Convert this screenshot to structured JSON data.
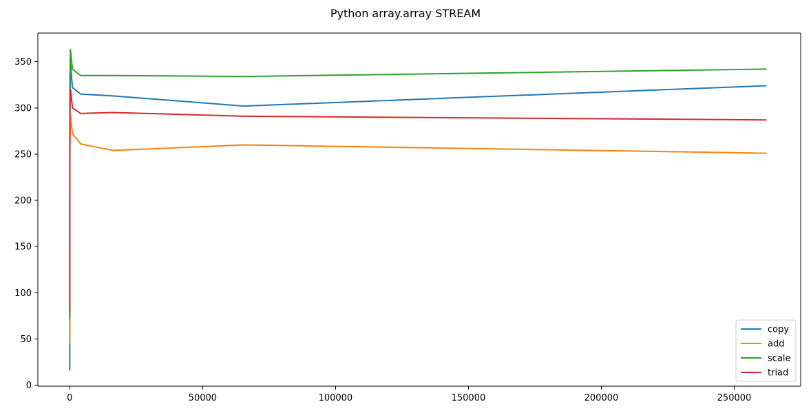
{
  "chart_data": {
    "type": "line",
    "title": "Python array.array STREAM",
    "xlabel": "",
    "ylabel": "",
    "xlim": [
      -12000,
      275000
    ],
    "ylim": [
      -1,
      381
    ],
    "xticks": [
      0,
      50000,
      100000,
      150000,
      200000,
      250000
    ],
    "xtick_labels": [
      "0",
      "50000",
      "100000",
      "150000",
      "200000",
      "250000"
    ],
    "yticks": [
      0,
      50,
      100,
      150,
      200,
      250,
      300,
      350
    ],
    "ytick_labels": [
      "0",
      "50",
      "100",
      "150",
      "200",
      "250",
      "300",
      "350"
    ],
    "grid": false,
    "legend_position": "lower-right",
    "colors": {
      "copy": "#1f77b4",
      "add": "#ff7f0e",
      "scale": "#2ca02c",
      "triad": "#d62728"
    },
    "series": [
      {
        "name": "copy",
        "x": [
          1,
          4,
          16,
          64,
          256,
          1024,
          4096,
          16384,
          65536,
          262144
        ],
        "y": [
          16,
          45,
          150,
          280,
          348,
          322,
          315,
          313,
          302,
          324
        ]
      },
      {
        "name": "add",
        "x": [
          1,
          4,
          16,
          64,
          256,
          1024,
          4096,
          16384,
          65536,
          262144
        ],
        "y": [
          45,
          70,
          180,
          260,
          292,
          272,
          261,
          254,
          260,
          251
        ]
      },
      {
        "name": "scale",
        "x": [
          1,
          4,
          16,
          64,
          256,
          1024,
          4096,
          16384,
          65536,
          262144
        ],
        "y": [
          72,
          80,
          220,
          330,
          363,
          342,
          335,
          335,
          334,
          342
        ]
      },
      {
        "name": "triad",
        "x": [
          1,
          4,
          16,
          64,
          256,
          1024,
          4096,
          16384,
          65536,
          262144
        ],
        "y": [
          80,
          110,
          240,
          300,
          320,
          300,
          294,
          295,
          291,
          287
        ]
      }
    ]
  }
}
